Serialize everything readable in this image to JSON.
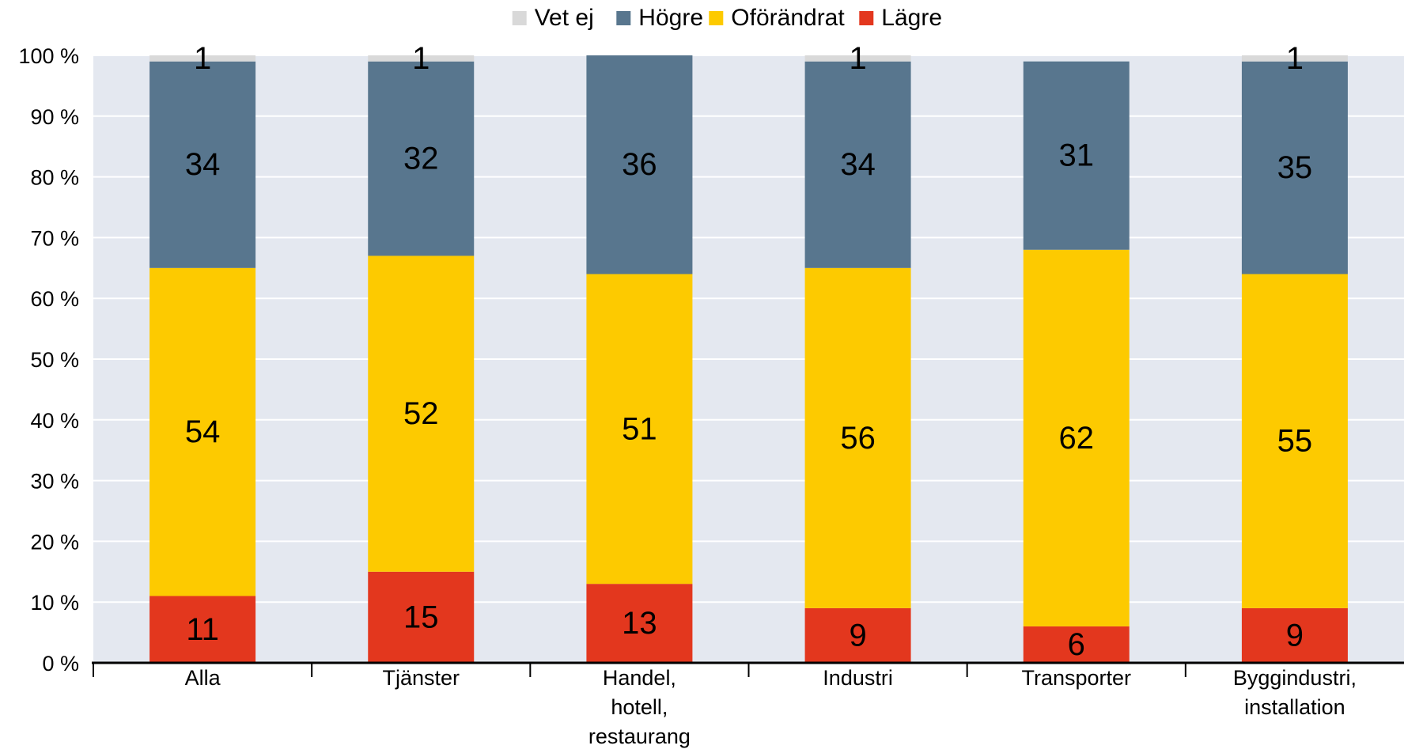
{
  "chart_data": {
    "type": "bar",
    "stacked": true,
    "categories": [
      [
        "Alla"
      ],
      [
        "Tjänster"
      ],
      [
        "Handel,",
        "hotell,",
        "restaurang"
      ],
      [
        "Industri"
      ],
      [
        "Transporter"
      ],
      [
        "Byggindustri,",
        "installation"
      ]
    ],
    "series": [
      {
        "name": "Lägre",
        "color": "#e3371e",
        "values": [
          11,
          15,
          13,
          9,
          6,
          9
        ]
      },
      {
        "name": "Oförändrat",
        "color": "#fdca00",
        "values": [
          54,
          52,
          51,
          56,
          62,
          55
        ]
      },
      {
        "name": "Högre",
        "color": "#58768e",
        "values": [
          34,
          32,
          36,
          34,
          31,
          35
        ]
      },
      {
        "name": "Vet ej",
        "color": "#d9d9d9",
        "values": [
          1,
          1,
          0,
          1,
          0,
          1
        ]
      }
    ],
    "legend_order": [
      "Vet ej",
      "Högre",
      "Oförändrat",
      "Lägre"
    ],
    "legend_position": "top-center",
    "ylim": [
      0,
      100
    ],
    "yticks": [
      0,
      10,
      20,
      30,
      40,
      50,
      60,
      70,
      80,
      90,
      100
    ],
    "ytick_suffix": " %",
    "grid": true,
    "plot_background": "#e4e8f0",
    "title": "",
    "xlabel": "",
    "ylabel": ""
  }
}
